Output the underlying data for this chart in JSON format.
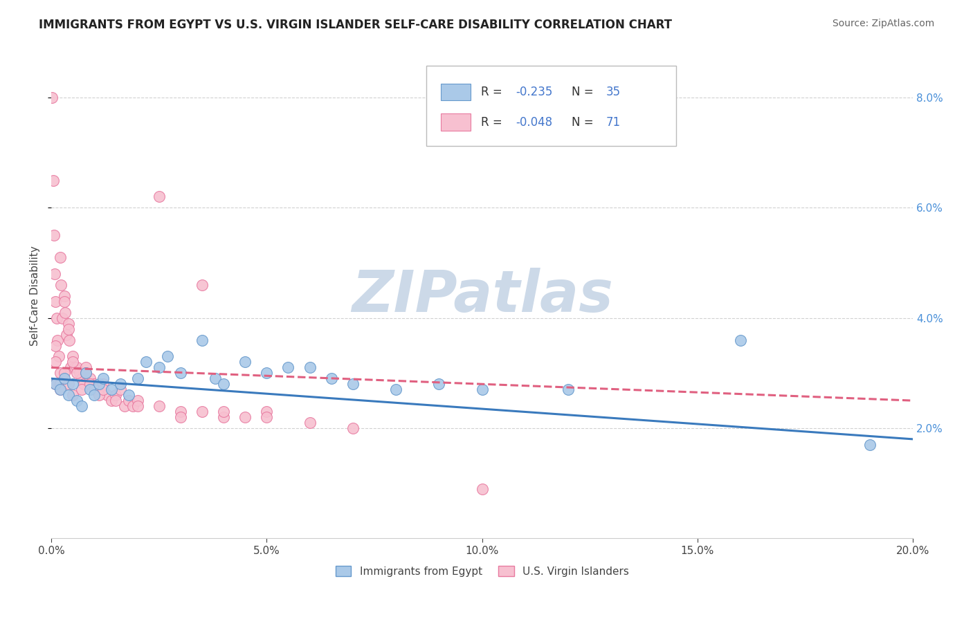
{
  "title": "IMMIGRANTS FROM EGYPT VS U.S. VIRGIN ISLANDER SELF-CARE DISABILITY CORRELATION CHART",
  "source": "Source: ZipAtlas.com",
  "ylabel": "Self-Care Disability",
  "xlim": [
    0.0,
    0.2
  ],
  "ylim": [
    0.0,
    0.088
  ],
  "xtick_vals": [
    0.0,
    0.05,
    0.1,
    0.15,
    0.2
  ],
  "xtick_labels": [
    "0.0%",
    "5.0%",
    "10.0%",
    "15.0%",
    "20.0%"
  ],
  "ytick_vals": [
    0.02,
    0.04,
    0.06,
    0.08
  ],
  "ytick_labels": [
    "2.0%",
    "4.0%",
    "6.0%",
    "8.0%"
  ],
  "color_blue_fill": "#aac9e8",
  "color_blue_edge": "#6699cc",
  "color_pink_fill": "#f7c0d0",
  "color_pink_edge": "#e87aa0",
  "color_trend_blue": "#3a7abd",
  "color_trend_pink": "#e06080",
  "watermark": "ZIPatlas",
  "watermark_color": "#ccd9e8",
  "blue_x": [
    0.001,
    0.002,
    0.003,
    0.004,
    0.005,
    0.006,
    0.007,
    0.008,
    0.009,
    0.01,
    0.011,
    0.012,
    0.014,
    0.016,
    0.018,
    0.02,
    0.022,
    0.025,
    0.027,
    0.03,
    0.035,
    0.038,
    0.04,
    0.045,
    0.05,
    0.055,
    0.06,
    0.065,
    0.07,
    0.08,
    0.09,
    0.1,
    0.12,
    0.16,
    0.19
  ],
  "blue_y": [
    0.028,
    0.027,
    0.029,
    0.026,
    0.028,
    0.025,
    0.024,
    0.03,
    0.027,
    0.026,
    0.028,
    0.029,
    0.027,
    0.028,
    0.026,
    0.029,
    0.032,
    0.031,
    0.033,
    0.03,
    0.036,
    0.029,
    0.028,
    0.032,
    0.03,
    0.031,
    0.031,
    0.029,
    0.028,
    0.027,
    0.028,
    0.027,
    0.027,
    0.036,
    0.017
  ],
  "pink_x": [
    0.0002,
    0.0004,
    0.0006,
    0.0008,
    0.001,
    0.0012,
    0.0015,
    0.0018,
    0.002,
    0.0022,
    0.0025,
    0.003,
    0.0032,
    0.0035,
    0.004,
    0.0042,
    0.0045,
    0.005,
    0.0055,
    0.006,
    0.0065,
    0.007,
    0.0075,
    0.008,
    0.009,
    0.01,
    0.011,
    0.012,
    0.013,
    0.014,
    0.015,
    0.016,
    0.017,
    0.018,
    0.019,
    0.02,
    0.001,
    0.001,
    0.001,
    0.002,
    0.002,
    0.002,
    0.003,
    0.003,
    0.004,
    0.004,
    0.005,
    0.005,
    0.006,
    0.007,
    0.008,
    0.009,
    0.01,
    0.011,
    0.012,
    0.015,
    0.02,
    0.025,
    0.03,
    0.035,
    0.04,
    0.045,
    0.05,
    0.025,
    0.03,
    0.035,
    0.04,
    0.05,
    0.06,
    0.07,
    0.1
  ],
  "pink_y": [
    0.08,
    0.065,
    0.055,
    0.048,
    0.043,
    0.04,
    0.036,
    0.033,
    0.051,
    0.046,
    0.04,
    0.044,
    0.041,
    0.037,
    0.039,
    0.036,
    0.031,
    0.033,
    0.031,
    0.031,
    0.03,
    0.029,
    0.028,
    0.031,
    0.029,
    0.028,
    0.027,
    0.028,
    0.026,
    0.025,
    0.026,
    0.027,
    0.024,
    0.025,
    0.024,
    0.025,
    0.035,
    0.032,
    0.028,
    0.03,
    0.028,
    0.027,
    0.043,
    0.03,
    0.038,
    0.028,
    0.032,
    0.026,
    0.03,
    0.027,
    0.03,
    0.028,
    0.027,
    0.026,
    0.027,
    0.025,
    0.024,
    0.024,
    0.023,
    0.023,
    0.022,
    0.022,
    0.023,
    0.062,
    0.022,
    0.046,
    0.023,
    0.022,
    0.021,
    0.02,
    0.009
  ],
  "blue_trend": [
    0.029,
    0.018
  ],
  "pink_trend": [
    0.031,
    0.025
  ]
}
